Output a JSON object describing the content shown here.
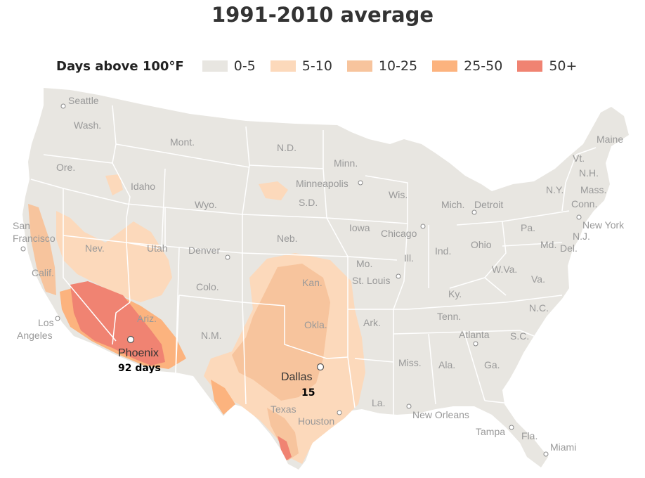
{
  "title": "1991-2010 average",
  "legend": {
    "title": "Days above 100°F",
    "items": [
      {
        "label": "0-5",
        "color": "#e8e6e1"
      },
      {
        "label": "5-10",
        "color": "#fcd9bb"
      },
      {
        "label": "10-25",
        "color": "#f7c49d"
      },
      {
        "label": "25-50",
        "color": "#fcb37e"
      },
      {
        "label": "50+",
        "color": "#f08372"
      }
    ]
  },
  "colors": {
    "land": "#e8e6e1",
    "border": "#ffffff",
    "label": "#999999"
  },
  "states": {
    "wa": "Wash.",
    "or": "Ore.",
    "ca": "Calif.",
    "id": "Idaho",
    "nv": "Nev.",
    "ut": "Utah",
    "az": "Ariz.",
    "mt": "Mont.",
    "wy": "Wyo.",
    "co": "Colo.",
    "nm": "N.M.",
    "nd": "N.D.",
    "sd": "S.D.",
    "ne": "Neb.",
    "ks": "Kan.",
    "ok": "Okla.",
    "tx": "Texas",
    "mn": "Minn.",
    "ia": "Iowa",
    "mo": "Mo.",
    "ar": "Ark.",
    "la": "La.",
    "wi": "Wis.",
    "il": "Ill.",
    "mi": "Mich.",
    "in": "Ind.",
    "oh": "Ohio",
    "ky": "Ky.",
    "tn": "Tenn.",
    "ms": "Miss.",
    "al": "Ala.",
    "ga": "Ga.",
    "fl": "Fla.",
    "sc": "S.C.",
    "nc": "N.C.",
    "va": "Va.",
    "wv": "W.Va.",
    "pa": "Pa.",
    "ny": "N.Y.",
    "md": "Md.",
    "de": "Del.",
    "nj": "N.J.",
    "vt": "Vt.",
    "nh": "N.H.",
    "ma": "Mass.",
    "ct": "Conn.",
    "me": "Maine"
  },
  "cities": {
    "seattle": "Seattle",
    "san_francisco_1": "San",
    "san_francisco_2": "Francisco",
    "los_angeles_1": "Los",
    "los_angeles_2": "Angeles",
    "denver": "Denver",
    "minneapolis": "Minneapolis",
    "chicago": "Chicago",
    "st_louis": "St. Louis",
    "detroit": "Detroit",
    "new_york": "New York",
    "atlanta": "Atlanta",
    "houston": "Houston",
    "new_orleans": "New Orleans",
    "tampa": "Tampa",
    "miami": "Miami"
  },
  "highlights": {
    "phoenix": {
      "name": "Phoenix",
      "value": "92 days"
    },
    "dallas": {
      "name": "Dallas",
      "value": "15"
    }
  }
}
